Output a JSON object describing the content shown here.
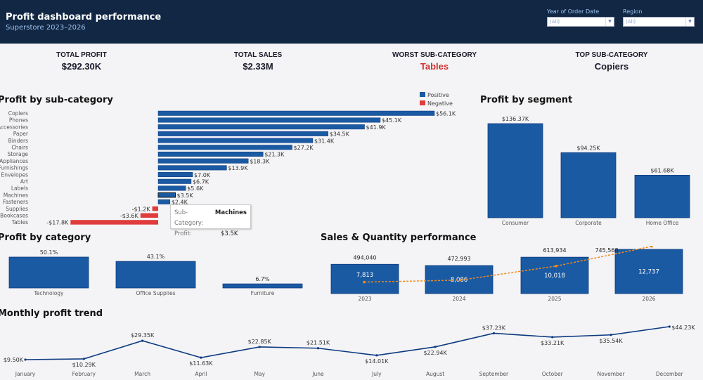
{
  "header": {
    "title": "Profit dashboard performance",
    "subtitle": "Superstore 2023–2026",
    "filters": [
      {
        "label": "Year of Order Date",
        "value": "(All)"
      },
      {
        "label": "Region",
        "value": "(All)"
      }
    ]
  },
  "kpis": [
    {
      "label": "TOTAL PROFIT",
      "value": "$292.30K"
    },
    {
      "label": "TOTAL SALES",
      "value": "$2.33M"
    },
    {
      "label": "WORST SUB-CATEGORY",
      "value": "Tables"
    },
    {
      "label": "TOP SUB-CATEGORY",
      "value": "Copiers"
    }
  ],
  "colors": {
    "positive": "#1a5aa3",
    "negative": "#e03c3c",
    "line": "#0d3a80",
    "quantity_line": "#f08a1c",
    "header_bg": "#112744"
  },
  "titles": {
    "subcat": "Profit by sub-category",
    "segment": "Profit by segment",
    "category": "Profit by category",
    "salesqty": "Sales & Quantity performance",
    "monthly": "Monthly profit trend"
  },
  "tooltip": {
    "k1": "Sub-Category:",
    "v1": "Machines",
    "k2": "Profit:",
    "v2": "$3.5K"
  },
  "chart_data": [
    {
      "id": "subcat",
      "type": "bar",
      "orientation": "horizontal",
      "title": "Profit by sub-category",
      "legend": {
        "position": "top-right",
        "entries": [
          "Positive",
          "Negative"
        ]
      },
      "categories": [
        "Copiers",
        "Phones",
        "Accessories",
        "Paper",
        "Binders",
        "Chairs",
        "Storage",
        "Appliances",
        "Furnishings",
        "Envelopes",
        "Art",
        "Labels",
        "Machines",
        "Fasteners",
        "Supplies",
        "Bookcases",
        "Tables"
      ],
      "values": [
        56.1,
        45.1,
        41.9,
        34.5,
        31.4,
        27.2,
        21.3,
        18.3,
        13.9,
        7.0,
        6.7,
        5.6,
        3.5,
        2.4,
        -1.2,
        -3.6,
        -17.8
      ],
      "labels": [
        "$56.1K",
        "$45.1K",
        "$41.9K",
        "$34.5K",
        "$31.4K",
        "$27.2K",
        "$21.3K",
        "$18.3K",
        "$13.9K",
        "$7.0K",
        "$6.7K",
        "$5.6K",
        "$3.5K",
        "$2.4K",
        "-$1.2K",
        "-$3.6K",
        "-$17.8K"
      ],
      "unit": "K USD",
      "highlighted": "Machines"
    },
    {
      "id": "segment",
      "type": "bar",
      "title": "Profit by segment",
      "categories": [
        "Consumer",
        "Corporate",
        "Home Office"
      ],
      "values": [
        136.37,
        94.25,
        61.68
      ],
      "labels": [
        "$136.37K",
        "$94.25K",
        "$61.68K"
      ],
      "unit": "K USD"
    },
    {
      "id": "category",
      "type": "bar",
      "title": "Profit by category",
      "categories": [
        "Technology",
        "Office Supplies",
        "Furniture"
      ],
      "values": [
        50.1,
        43.1,
        6.7
      ],
      "labels": [
        "50.1%",
        "43.1%",
        "6.7%"
      ],
      "unit": "%"
    },
    {
      "id": "salesqty",
      "type": "bar",
      "title": "Sales & Quantity performance",
      "categories": [
        "2023",
        "2024",
        "2025",
        "2026"
      ],
      "series": [
        {
          "name": "Sales",
          "type": "bar",
          "values": [
            494040,
            472993,
            613934,
            745568
          ],
          "labels": [
            "494,040",
            "472,993",
            "613,934",
            "745,568"
          ]
        },
        {
          "name": "Quantity",
          "type": "line",
          "style": "dashed",
          "values": [
            7813,
            8086,
            10018,
            12737
          ],
          "labels": [
            "7,813",
            "8,086",
            "10,018",
            "12,737"
          ]
        }
      ]
    },
    {
      "id": "monthly",
      "type": "line",
      "title": "Monthly profit trend",
      "categories": [
        "January",
        "February",
        "March",
        "April",
        "May",
        "June",
        "July",
        "August",
        "September",
        "October",
        "November",
        "December"
      ],
      "values": [
        9.5,
        10.29,
        29.35,
        11.63,
        22.85,
        21.51,
        14.01,
        22.94,
        37.23,
        33.21,
        35.54,
        44.23
      ],
      "labels": [
        "$9.50K",
        "$10.29K",
        "$29.35K",
        "$11.63K",
        "$22.85K",
        "$21.51K",
        "$14.01K",
        "$22.94K",
        "$37.23K",
        "$33.21K",
        "$35.54K",
        "$44.23K"
      ],
      "unit": "K USD"
    }
  ]
}
